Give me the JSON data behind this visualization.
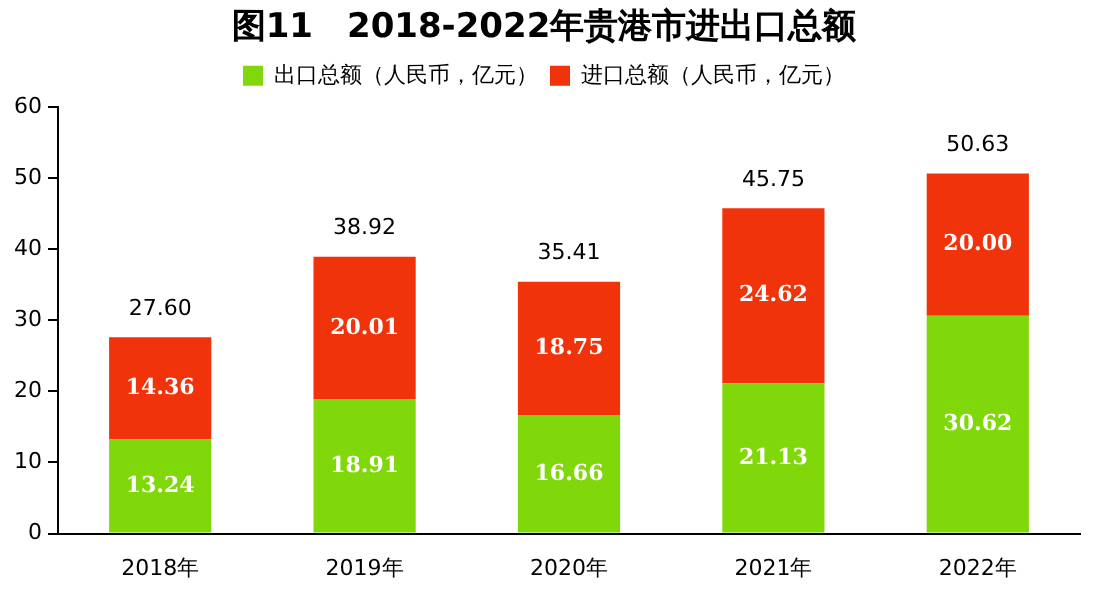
{
  "chart_data": {
    "type": "bar",
    "title": "图11　2018-2022年贵港市进出口总额",
    "categories": [
      "2018年",
      "2019年",
      "2020年",
      "2021年",
      "2022年"
    ],
    "series": [
      {
        "name": "出口总额（人民币，亿元）",
        "color": "#80d80a",
        "values": [
          13.24,
          18.91,
          16.66,
          21.13,
          30.62
        ],
        "value_labels": [
          "13.24",
          "18.91",
          "16.66",
          "21.13",
          "30.62"
        ]
      },
      {
        "name": "进口总额（人民币，亿元）",
        "color": "#f0330a",
        "values": [
          14.36,
          20.01,
          18.75,
          24.62,
          20.0
        ],
        "value_labels": [
          "14.36",
          "20.01",
          "18.75",
          "24.62",
          "20.00"
        ]
      }
    ],
    "stacked": true,
    "totals": [
      "27.60",
      "38.92",
      "35.41",
      "45.75",
      "50.63"
    ],
    "ylim": [
      0,
      60
    ],
    "yticks": [
      0,
      10,
      20,
      30,
      40,
      50,
      60
    ],
    "grid": false,
    "legend": "top"
  }
}
